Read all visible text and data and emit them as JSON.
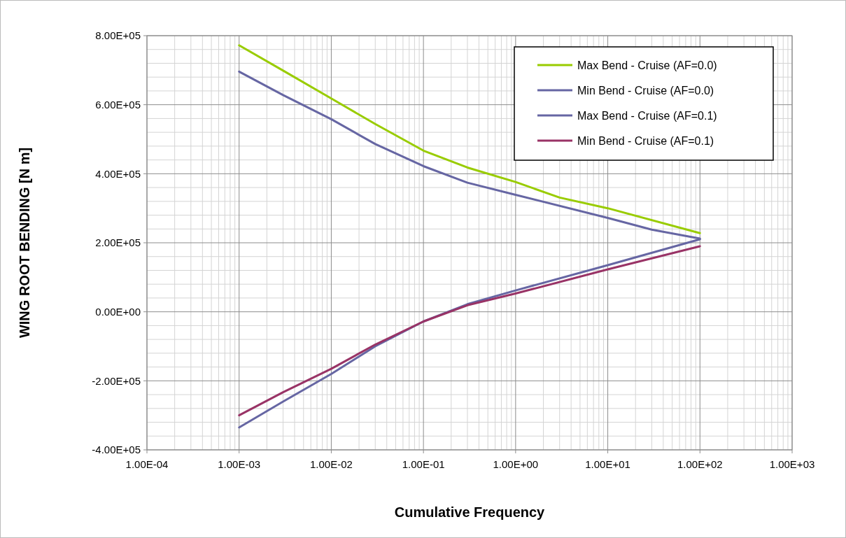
{
  "chart_data": {
    "type": "line",
    "xlabel": "Cumulative Frequency",
    "ylabel": "WING ROOT BENDING [N m]",
    "log": "x",
    "grid": true,
    "legend": "top right",
    "marker": "none",
    "line_style": "solid",
    "xlim": [
      0.0001,
      1000
    ],
    "ylim": [
      -400000,
      800000
    ],
    "xticks": [
      {
        "value": 0.0001,
        "label": "1.00E-04"
      },
      {
        "value": 0.001,
        "label": "1.00E-03"
      },
      {
        "value": 0.01,
        "label": "1.00E-02"
      },
      {
        "value": 0.1,
        "label": "1.00E-01"
      },
      {
        "value": 1,
        "label": "1.00E+00"
      },
      {
        "value": 10,
        "label": "1.00E+01"
      },
      {
        "value": 100,
        "label": "1.00E+02"
      },
      {
        "value": 1000,
        "label": "1.00E+03"
      }
    ],
    "yticks": [
      {
        "value": -400000,
        "label": "-4.00E+05"
      },
      {
        "value": -200000,
        "label": "-2.00E+05"
      },
      {
        "value": 0,
        "label": "0.00E+00"
      },
      {
        "value": 200000,
        "label": "2.00E+05"
      },
      {
        "value": 400000,
        "label": "4.00E+05"
      },
      {
        "value": 600000,
        "label": "6.00E+05"
      },
      {
        "value": 800000,
        "label": "8.00E+05"
      }
    ],
    "series": [
      {
        "name": "Max Bend - Cruise (AF=0.0)",
        "color": "#99cc00",
        "x": [
          0.001,
          0.003,
          0.01,
          0.03,
          0.1,
          0.3,
          1,
          3,
          10,
          100
        ],
        "values": [
          772000,
          699000,
          618000,
          544000,
          467000,
          418000,
          376000,
          331000,
          300000,
          228000
        ]
      },
      {
        "name": "Min Bend - Cruise (AF=0.0)",
        "color": "#6666a3",
        "x": [
          0.001,
          0.003,
          0.01,
          0.03,
          0.1,
          0.3,
          1,
          10,
          100
        ],
        "values": [
          -335000,
          -260000,
          -180000,
          -100000,
          -28000,
          22000,
          62000,
          135000,
          210000
        ]
      },
      {
        "name": "Max Bend - Cruise (AF=0.1)",
        "color": "#6666a3",
        "x": [
          0.001,
          0.003,
          0.01,
          0.03,
          0.1,
          0.3,
          1,
          10,
          30,
          100
        ],
        "values": [
          696000,
          628000,
          558000,
          486000,
          422000,
          374000,
          339000,
          272000,
          238000,
          212000
        ]
      },
      {
        "name": "Min Bend - Cruise (AF=0.1)",
        "color": "#993366",
        "x": [
          0.001,
          0.003,
          0.01,
          0.03,
          0.1,
          0.3,
          1,
          10,
          100
        ],
        "values": [
          -300000,
          -233000,
          -165000,
          -95000,
          -28000,
          19000,
          53000,
          123000,
          190000
        ]
      }
    ]
  }
}
